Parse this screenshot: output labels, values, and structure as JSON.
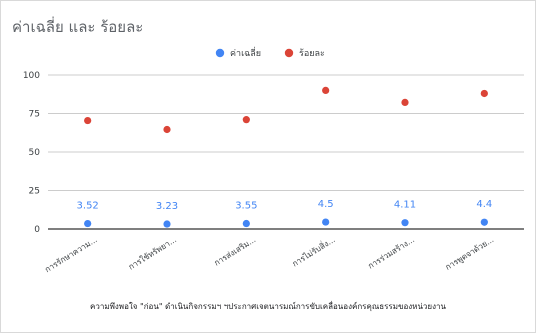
{
  "chart_data": {
    "type": "scatter",
    "title": "ค่าเฉลี่ย และ ร้อยละ",
    "xlabel": "ความพึงพอใจ \"ก่อน\" ดำเนินกิจกรรมฯ ฯประกาศเจตนารมณ์การขับเคลื่อนองค์กรคุณธรรมของหน่วยงาน",
    "ylabel": "",
    "ylim": [
      0,
      100
    ],
    "yticks": [
      0,
      25,
      50,
      75,
      100
    ],
    "grid": true,
    "legend_position": "top",
    "categories": [
      "การรักษาความ...",
      "การใช้ทรัพยา...",
      "การส่งเสริม...",
      "การไม่รับสิ่ง...",
      "การร่วมสร้าง...",
      "การพูดจาด้วย..."
    ],
    "series": [
      {
        "name": "ค่าเฉลี่ย",
        "color": "#4285f4",
        "values": [
          3.52,
          3.23,
          3.55,
          4.5,
          4.11,
          4.4
        ],
        "labels": [
          "3.52",
          "3.23",
          "3.55",
          "4.5",
          "4.11",
          "4.4"
        ]
      },
      {
        "name": "ร้อยละ",
        "color": "#db4437",
        "values": [
          70.4,
          64.6,
          71,
          90,
          82.2,
          88
        ]
      }
    ]
  }
}
